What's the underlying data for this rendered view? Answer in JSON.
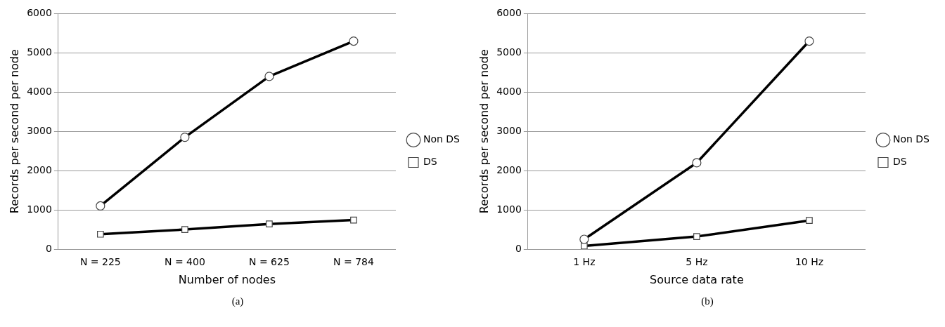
{
  "chart_data": [
    {
      "type": "line",
      "categories": [
        "N = 225",
        "N = 400",
        "N = 625",
        "N = 784"
      ],
      "xlabel": "Number of nodes",
      "ylabel": "Records per second per node",
      "ylim": [
        0,
        6000
      ],
      "yticks": [
        0,
        1000,
        2000,
        3000,
        4000,
        5000,
        6000
      ],
      "grid": "y",
      "legend": "right",
      "line_style": "solid",
      "annotations": [
        "(a)"
      ],
      "series": [
        {
          "name": "Non DS",
          "color": "#000000",
          "marker": "circle",
          "values": [
            1100,
            2850,
            4400,
            5300
          ]
        },
        {
          "name": "DS",
          "color": "#000000",
          "marker": "square",
          "values": [
            380,
            500,
            640,
            740
          ]
        }
      ]
    },
    {
      "type": "line",
      "categories": [
        "1 Hz",
        "5 Hz",
        "10 Hz"
      ],
      "xlabel": "Source data rate",
      "ylabel": "Records per second per node",
      "ylim": [
        0,
        6000
      ],
      "yticks": [
        0,
        1000,
        2000,
        3000,
        4000,
        5000,
        6000
      ],
      "grid": "y",
      "legend": "right",
      "line_style": "solid",
      "annotations": [
        "(b)"
      ],
      "series": [
        {
          "name": "Non DS",
          "color": "#000000",
          "marker": "circle",
          "values": [
            250,
            2200,
            5300
          ]
        },
        {
          "name": "DS",
          "color": "#000000",
          "marker": "square",
          "values": [
            80,
            320,
            730
          ]
        }
      ]
    }
  ]
}
